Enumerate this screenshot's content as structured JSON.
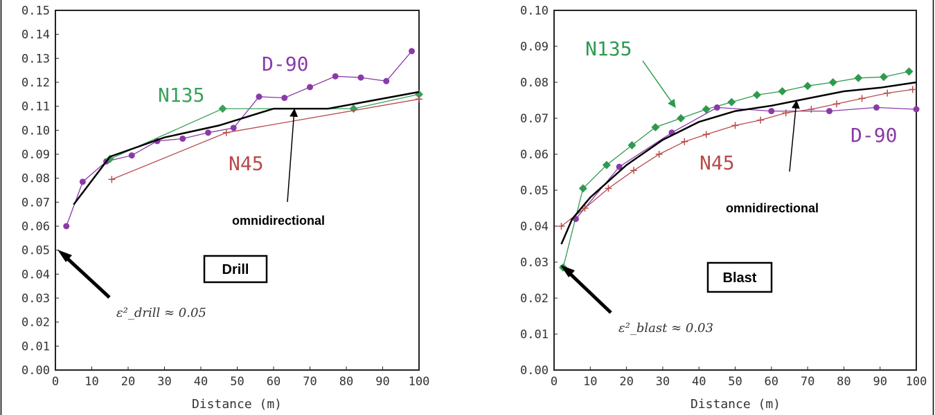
{
  "chart_data": [
    {
      "type": "line",
      "panel_label": "Drill",
      "xlabel": "Distance (m)",
      "ylabel": "",
      "xlim": [
        0,
        100
      ],
      "ylim": [
        0,
        0.15
      ],
      "x_ticks": [
        "0",
        "10",
        "20",
        "30",
        "40",
        "50",
        "60",
        "70",
        "80",
        "90",
        "100"
      ],
      "y_ticks": [
        "0.00",
        "0.01",
        "0.02",
        "0.03",
        "0.04",
        "0.05",
        "0.06",
        "0.07",
        "0.08",
        "0.09",
        "0.10",
        "0.11",
        "0.12",
        "0.13",
        "0.14",
        "0.15"
      ],
      "grid": false,
      "series": [
        {
          "name": "D-90",
          "color": "#8a3aa8",
          "marker": "circle",
          "x": [
            3,
            7.5,
            14,
            21,
            28,
            35,
            42,
            49,
            56,
            63,
            70,
            77,
            84,
            91,
            98
          ],
          "y": [
            0.06,
            0.0785,
            0.087,
            0.0895,
            0.0955,
            0.0965,
            0.099,
            0.101,
            0.114,
            0.1135,
            0.118,
            0.1225,
            0.122,
            0.1205,
            0.133
          ]
        },
        {
          "name": "N135",
          "color": "#3aa05a",
          "marker": "diamond",
          "x": [
            15,
            46,
            82,
            100
          ],
          "y": [
            0.088,
            0.109,
            0.109,
            0.115
          ]
        },
        {
          "name": "N45",
          "color": "#b84a4a",
          "marker": "plus",
          "x": [
            15.5,
            47,
            100
          ],
          "y": [
            0.0795,
            0.099,
            0.113
          ]
        },
        {
          "name": "omnidirectional",
          "color": "#000000",
          "marker": "none",
          "x": [
            5,
            15,
            30,
            45,
            60,
            75,
            100
          ],
          "y": [
            0.069,
            0.089,
            0.097,
            0.102,
            0.109,
            0.109,
            0.116
          ]
        }
      ],
      "annotations": [
        "omnidirectional",
        "ε²_drill ≈ 0.05"
      ]
    },
    {
      "type": "line",
      "panel_label": "Blast",
      "xlabel": "Distance (m)",
      "ylabel": "",
      "xlim": [
        0,
        100
      ],
      "ylim": [
        0,
        0.1
      ],
      "x_ticks": [
        "0",
        "10",
        "20",
        "30",
        "40",
        "50",
        "60",
        "70",
        "80",
        "90",
        "100"
      ],
      "y_ticks": [
        "0.00",
        "0.01",
        "0.02",
        "0.03",
        "0.04",
        "0.05",
        "0.06",
        "0.07",
        "0.08",
        "0.09",
        "0.10"
      ],
      "grid": false,
      "series": [
        {
          "name": "N135",
          "color": "#2e9a4e",
          "marker": "diamond",
          "x": [
            2.5,
            8,
            14.5,
            21.5,
            28,
            35,
            42,
            49,
            56,
            63,
            70,
            77,
            84,
            91,
            98
          ],
          "y": [
            0.0285,
            0.0505,
            0.057,
            0.0625,
            0.0675,
            0.07,
            0.0725,
            0.0745,
            0.0765,
            0.0775,
            0.079,
            0.08,
            0.0812,
            0.0815,
            0.083
          ]
        },
        {
          "name": "D-90",
          "color": "#8a3aa8",
          "marker": "circle",
          "x": [
            6,
            18,
            32.5,
            45,
            60,
            76,
            89,
            100
          ],
          "y": [
            0.042,
            0.0565,
            0.066,
            0.073,
            0.072,
            0.072,
            0.073,
            0.0725
          ]
        },
        {
          "name": "N45",
          "color": "#b84a4a",
          "marker": "plus",
          "x": [
            2,
            8.5,
            15,
            22,
            29,
            36,
            42,
            50,
            57,
            64,
            71,
            78,
            85,
            92,
            99
          ],
          "y": [
            0.04,
            0.045,
            0.0505,
            0.0555,
            0.06,
            0.0635,
            0.0655,
            0.068,
            0.0695,
            0.0715,
            0.0725,
            0.074,
            0.0755,
            0.077,
            0.078
          ]
        },
        {
          "name": "omnidirectional",
          "color": "#000000",
          "marker": "none",
          "x": [
            2,
            5,
            10,
            20,
            30,
            40,
            50,
            60,
            70,
            80,
            90,
            100
          ],
          "y": [
            0.035,
            0.042,
            0.048,
            0.057,
            0.064,
            0.069,
            0.072,
            0.0735,
            0.0755,
            0.0775,
            0.0785,
            0.08
          ]
        }
      ],
      "annotations": [
        "omnidirectional",
        "ε²_blast ≈ 0.03"
      ]
    }
  ]
}
